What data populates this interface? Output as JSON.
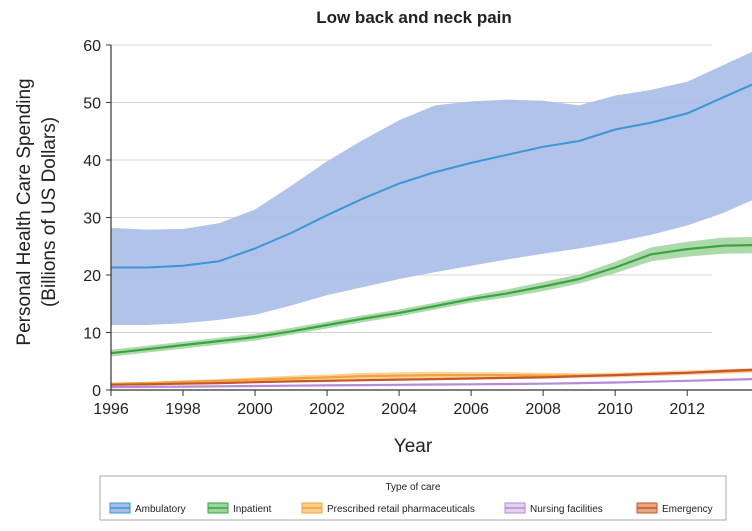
{
  "chart_data": {
    "type": "area",
    "title": "Low back and neck pain",
    "xlabel": "Year",
    "ylabel": "Personal Health Care Spending",
    "ylabel_units": "(Billions of US Dollars)",
    "xlim": [
      1996,
      2013.8
    ],
    "ylim": [
      0,
      60
    ],
    "x_ticks": [
      1996,
      1998,
      2000,
      2002,
      2004,
      2006,
      2008,
      2010,
      2012
    ],
    "y_ticks": [
      0,
      10,
      20,
      30,
      40,
      50,
      60
    ],
    "grid": true,
    "legend_title": "Type of care",
    "legend_position": "bottom",
    "x": [
      1996,
      1997,
      1998,
      1999,
      2000,
      2001,
      2002,
      2003,
      2004,
      2005,
      2006,
      2007,
      2008,
      2009,
      2010,
      2011,
      2012,
      2013,
      2013.8
    ],
    "series": [
      {
        "name": "Ambulatory",
        "color": "#3a96d6",
        "band_color": "#a9bde6",
        "values": [
          21.3,
          21.3,
          21.6,
          22.4,
          24.6,
          27.3,
          30.4,
          33.3,
          35.9,
          37.9,
          39.5,
          40.9,
          42.3,
          43.3,
          45.3,
          46.5,
          48.1,
          50.9,
          53.1
        ],
        "lower": [
          11.3,
          11.3,
          11.6,
          12.2,
          13.1,
          14.7,
          16.5,
          17.9,
          19.3,
          20.5,
          21.6,
          22.7,
          23.7,
          24.6,
          25.7,
          27.0,
          28.6,
          30.8,
          33.0
        ],
        "upper": [
          28.2,
          27.9,
          28.0,
          29.0,
          31.4,
          35.5,
          39.8,
          43.5,
          46.9,
          49.5,
          50.2,
          50.5,
          50.3,
          49.5,
          51.2,
          52.2,
          53.6,
          56.5,
          58.8
        ]
      },
      {
        "name": "Inpatient",
        "color": "#3aa443",
        "band_color": "#9fd39c",
        "values": [
          6.4,
          7.1,
          7.8,
          8.5,
          9.2,
          10.2,
          11.3,
          12.4,
          13.4,
          14.6,
          15.8,
          16.8,
          18.0,
          19.3,
          21.3,
          23.6,
          24.5,
          25.1,
          25.2
        ],
        "lower": [
          5.8,
          6.5,
          7.2,
          7.9,
          8.6,
          9.6,
          10.7,
          11.8,
          12.8,
          14.0,
          15.2,
          16.1,
          17.2,
          18.5,
          20.3,
          22.4,
          23.2,
          23.7,
          23.8
        ],
        "upper": [
          7.0,
          7.7,
          8.4,
          9.1,
          9.8,
          10.8,
          11.9,
          13.0,
          14.0,
          15.2,
          16.4,
          17.5,
          18.8,
          20.1,
          22.3,
          24.8,
          25.8,
          26.5,
          26.6
        ]
      },
      {
        "name": "Prescribed retail pharmaceuticals",
        "color": "#f2a33a",
        "band_color": "#f9cd8c",
        "values": [
          1.1,
          1.2,
          1.4,
          1.6,
          1.8,
          2.0,
          2.2,
          2.4,
          2.5,
          2.6,
          2.6,
          2.6,
          2.5,
          2.5,
          2.6,
          2.8,
          3.0,
          3.2,
          3.4
        ],
        "lower": [
          0.9,
          1.0,
          1.1,
          1.3,
          1.4,
          1.6,
          1.7,
          1.8,
          1.9,
          2.0,
          2.0,
          2.0,
          2.0,
          2.1,
          2.2,
          2.4,
          2.6,
          2.8,
          3.0
        ],
        "upper": [
          1.3,
          1.4,
          1.7,
          1.9,
          2.2,
          2.5,
          2.7,
          3.0,
          3.1,
          3.2,
          3.1,
          3.1,
          3.0,
          2.9,
          3.0,
          3.2,
          3.4,
          3.6,
          3.8
        ]
      },
      {
        "name": "Nursing facilities",
        "color": "#b78ad6",
        "band_color": "#e3d2ee",
        "values": [
          0.5,
          0.55,
          0.6,
          0.65,
          0.7,
          0.75,
          0.8,
          0.85,
          0.9,
          0.95,
          1.0,
          1.05,
          1.1,
          1.2,
          1.3,
          1.45,
          1.6,
          1.75,
          1.9
        ],
        "lower": [
          0.4,
          0.45,
          0.5,
          0.55,
          0.6,
          0.65,
          0.7,
          0.75,
          0.8,
          0.85,
          0.9,
          0.95,
          1.0,
          1.1,
          1.2,
          1.35,
          1.5,
          1.65,
          1.8
        ],
        "upper": [
          0.6,
          0.65,
          0.7,
          0.75,
          0.8,
          0.85,
          0.9,
          0.95,
          1.0,
          1.05,
          1.1,
          1.15,
          1.2,
          1.3,
          1.4,
          1.55,
          1.7,
          1.85,
          2.0
        ]
      },
      {
        "name": "Emergency",
        "color": "#c8562c",
        "band_color": "#e8a47e",
        "values": [
          0.9,
          1.0,
          1.1,
          1.2,
          1.35,
          1.5,
          1.6,
          1.7,
          1.8,
          1.9,
          2.0,
          2.1,
          2.2,
          2.4,
          2.6,
          2.8,
          3.0,
          3.3,
          3.5
        ],
        "lower": [
          0.8,
          0.9,
          1.0,
          1.1,
          1.2,
          1.35,
          1.45,
          1.55,
          1.65,
          1.75,
          1.85,
          1.95,
          2.05,
          2.25,
          2.45,
          2.65,
          2.85,
          3.1,
          3.3
        ],
        "upper": [
          1.0,
          1.1,
          1.2,
          1.3,
          1.5,
          1.65,
          1.75,
          1.85,
          1.95,
          2.05,
          2.15,
          2.25,
          2.35,
          2.55,
          2.75,
          2.95,
          3.15,
          3.5,
          3.7
        ]
      }
    ]
  }
}
